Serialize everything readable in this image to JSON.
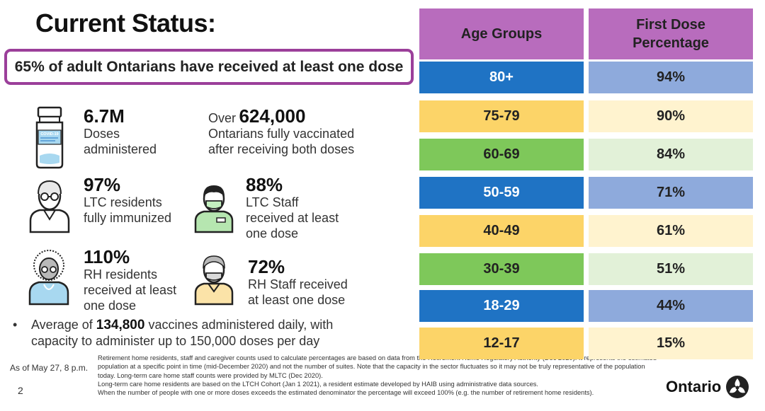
{
  "title": "Current Status:",
  "highlight": "65% of adult Ontarians have received at least one dose",
  "stats": {
    "doses": {
      "value": "6.7M",
      "line1": "Doses",
      "line2": "administered"
    },
    "fully": {
      "prefix": "Over",
      "value": "624,000",
      "line1": "Ontarians fully vaccinated",
      "line2": "after receiving both doses"
    },
    "ltc_res": {
      "value": "97%",
      "line1": "LTC residents",
      "line2": "fully immunized"
    },
    "ltc_staff": {
      "value": "88%",
      "line1": "LTC Staff",
      "line2": "received at least",
      "line3": "one dose"
    },
    "rh_res": {
      "value": "110%",
      "line1": "RH residents",
      "line2": "received at least",
      "line3": "one dose"
    },
    "rh_staff": {
      "value": "72%",
      "line1": "RH Staff received",
      "line2": "at least one dose"
    }
  },
  "bullet": {
    "dot": "•",
    "prefix": "Average of",
    "value": "134,800",
    "suffix": "vaccines administered daily, with",
    "line2": "capacity to administer up to 150,000 doses per day"
  },
  "as_of": "As of May 27, 8 p.m.",
  "page_number": "2",
  "notes": [
    "Retirement home residents, staff and caregiver counts used to calculate percentages are based on data from the Retirement Home Regulatory Authority (Dec 2020). It represents the estimated",
    "population at a specific point in time (mid-December 2020) and not the number of suites. Note that the capacity in the sector fluctuates so it may not be truly representative of the population",
    "today. Long-term care home staff counts were provided by MLTC (Dec 2020).",
    "Long-term care home residents are based on the LTCH Cohort (Jan 1 2021), a resident estimate developed by HAIB using administrative data sources.",
    "When the number of people with one or more doses exceeds the estimated denominator the percentage will exceed 100% (e.g. the number of retirement home residents)."
  ],
  "logo_text": "Ontario",
  "vial_label": "COVID-19",
  "table": {
    "headers": [
      "Age Groups",
      "First Dose Percentage"
    ],
    "header_color": "#b86cbd",
    "rows": [
      {
        "age": "80+",
        "pct": "94%",
        "left_color": "#1f73c4",
        "right_color": "#8eaadc",
        "dark": true
      },
      {
        "age": "75-79",
        "pct": "90%",
        "left_color": "#fcd468",
        "right_color": "#fff3cf",
        "dark": false
      },
      {
        "age": "60-69",
        "pct": "84%",
        "left_color": "#7ec85a",
        "right_color": "#e2f1d8",
        "dark": false
      },
      {
        "age": "50-59",
        "pct": "71%",
        "left_color": "#1f73c4",
        "right_color": "#8eaadc",
        "dark": true
      },
      {
        "age": "40-49",
        "pct": "61%",
        "left_color": "#fcd468",
        "right_color": "#fff3cf",
        "dark": false
      },
      {
        "age": "30-39",
        "pct": "51%",
        "left_color": "#7ec85a",
        "right_color": "#e2f1d8",
        "dark": false
      },
      {
        "age": "18-29",
        "pct": "44%",
        "left_color": "#1f73c4",
        "right_color": "#8eaadc",
        "dark": true
      },
      {
        "age": "12-17",
        "pct": "15%",
        "left_color": "#fcd468",
        "right_color": "#fff3cf",
        "dark": false
      }
    ]
  }
}
